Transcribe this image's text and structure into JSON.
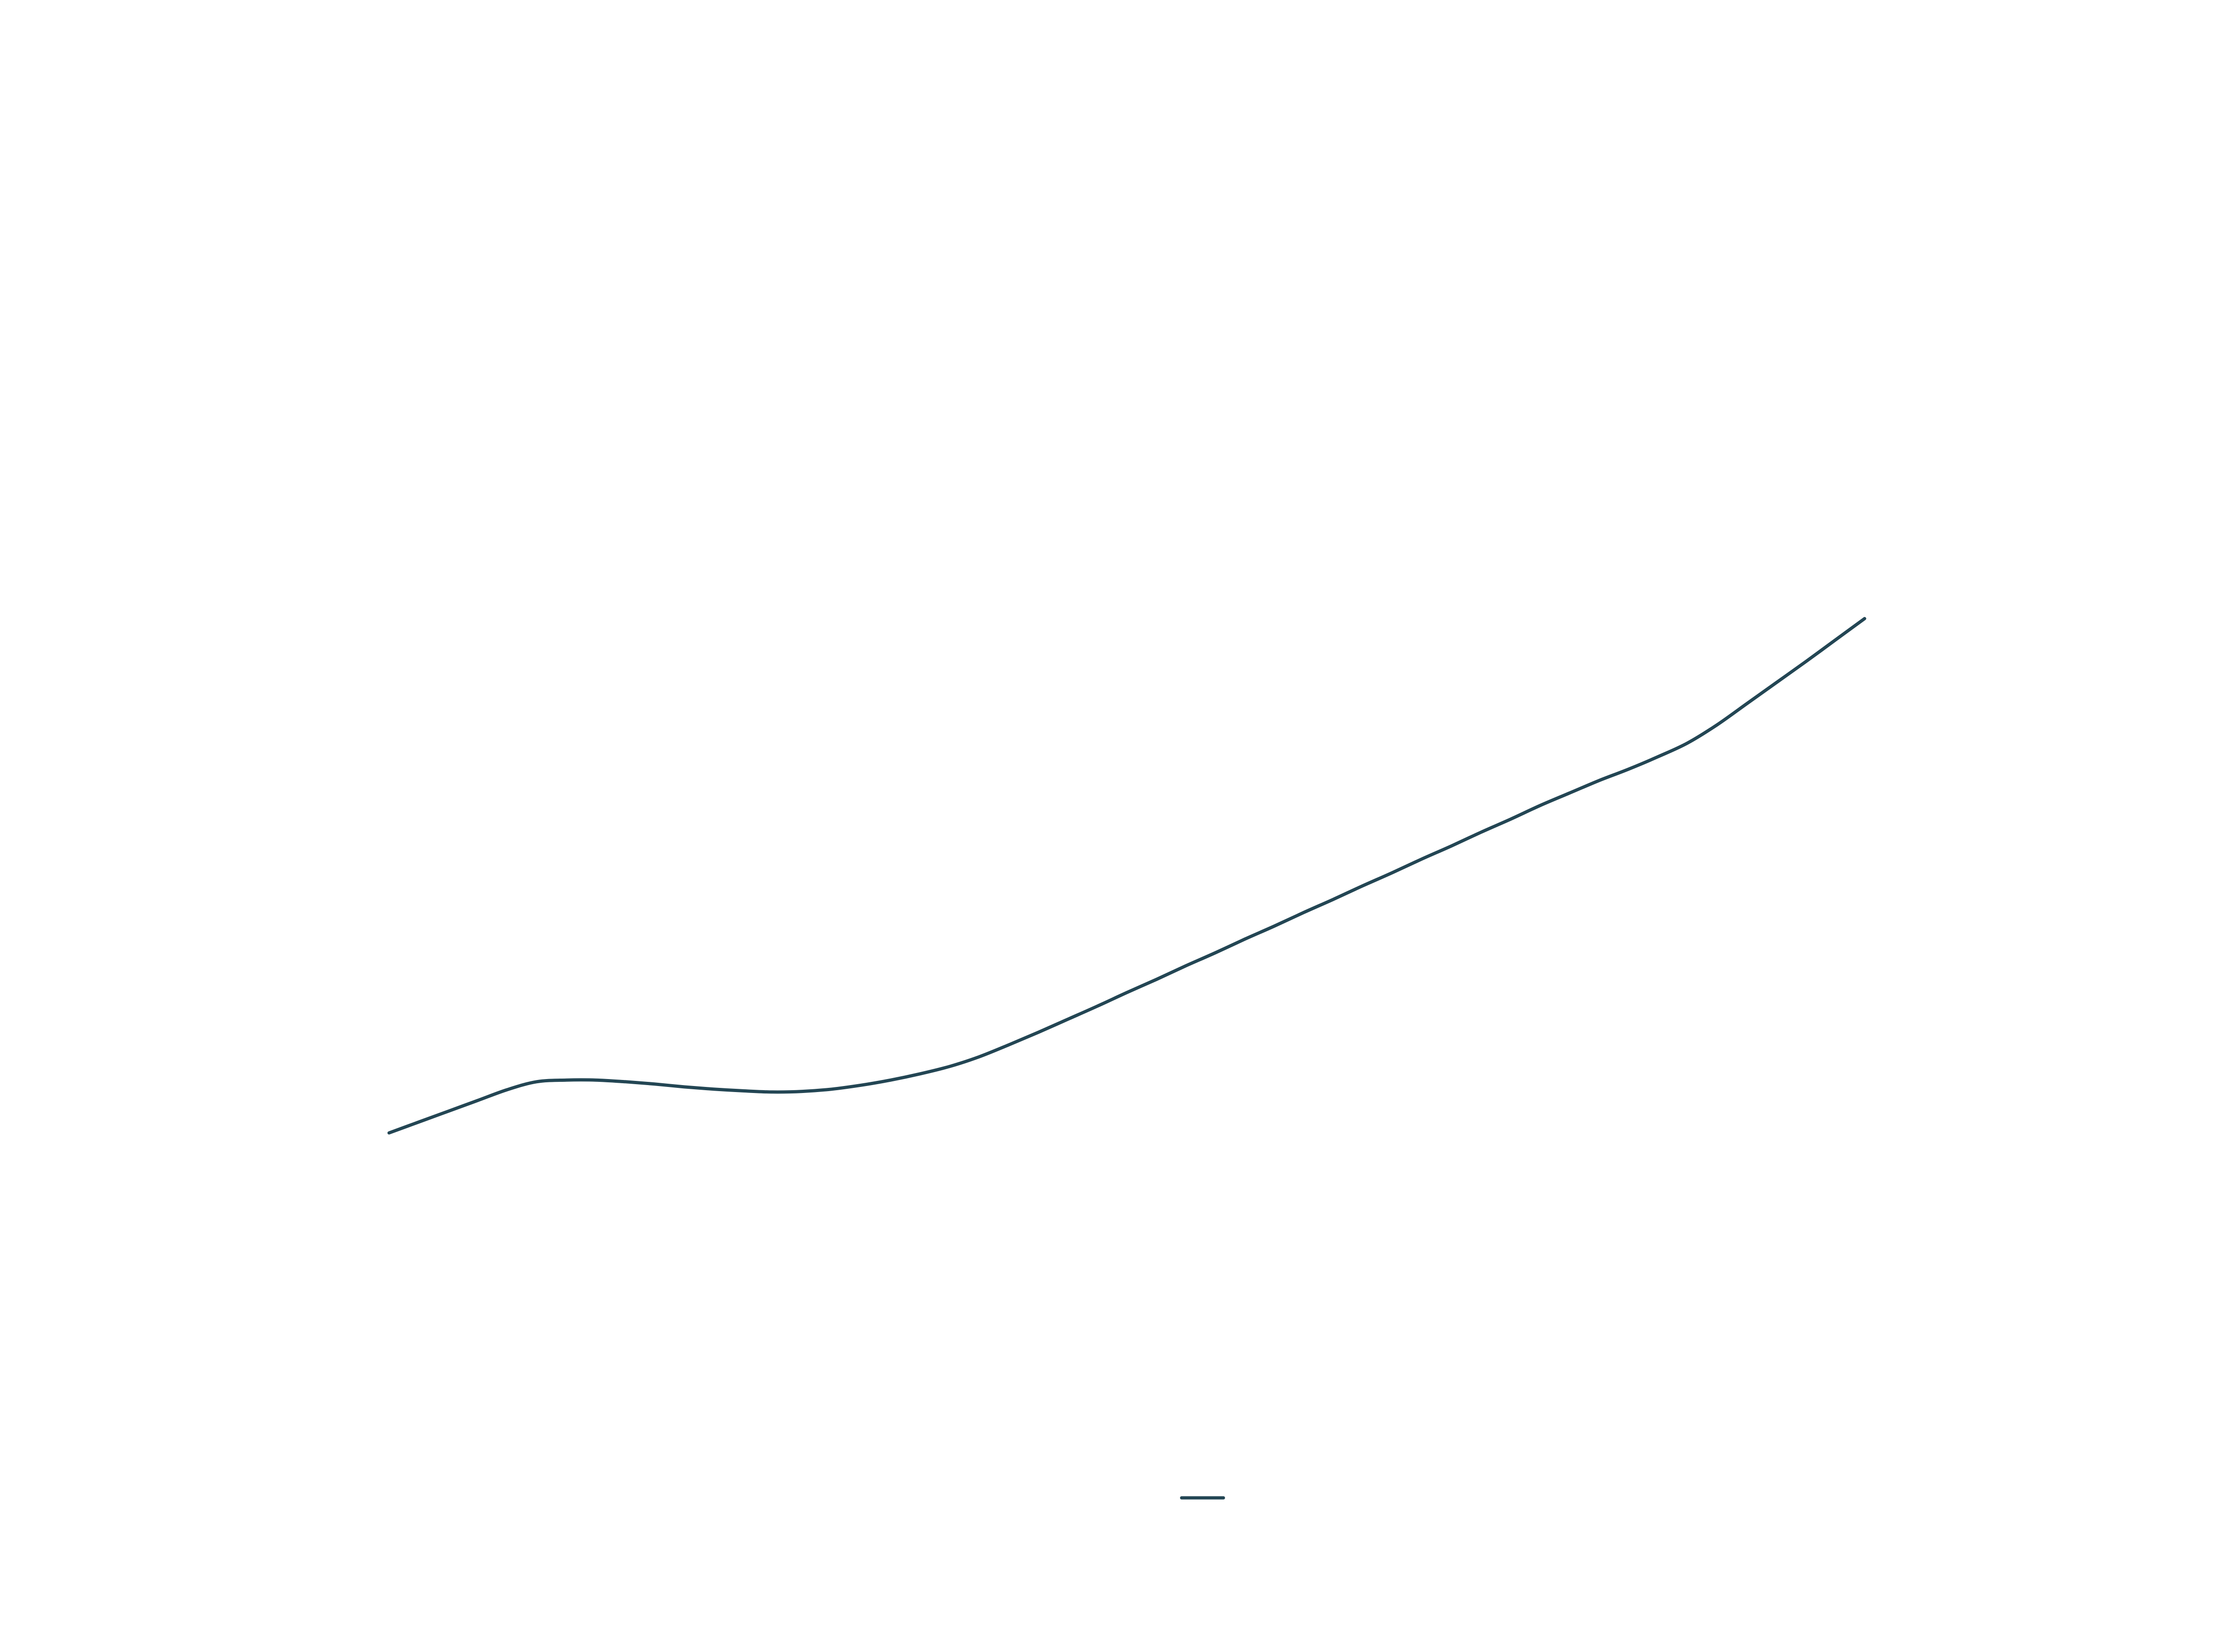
{
  "chart_data": {
    "type": "line",
    "title": "",
    "xlabel": "",
    "ylabel": "",
    "grid": false,
    "axes_visible": false,
    "legend_placement": "bottom-center",
    "xlim": [
      0,
      100
    ],
    "ylim": [
      0,
      100
    ],
    "series": [
      {
        "name": "",
        "color": "#234654",
        "x": [
          0,
          2,
          4,
          6,
          8,
          10,
          12,
          14,
          16,
          18,
          20,
          22,
          24,
          26,
          28,
          30,
          32,
          34,
          36,
          38,
          40,
          42,
          44,
          46,
          48,
          50,
          52,
          54,
          56,
          58,
          60,
          62,
          64,
          66,
          68,
          70,
          72,
          74,
          76,
          78,
          80,
          82,
          84,
          86,
          88,
          90,
          92,
          94,
          96,
          98,
          100
        ],
        "y": [
          0.0,
          1.9,
          3.8,
          5.7,
          7.6,
          9.0,
          9.3,
          9.3,
          9.0,
          8.6,
          8.1,
          7.7,
          7.4,
          7.2,
          7.3,
          7.7,
          8.4,
          9.3,
          10.4,
          11.7,
          13.4,
          15.5,
          17.7,
          20.0,
          22.3,
          24.7,
          27.0,
          29.4,
          31.7,
          34.1,
          36.4,
          38.8,
          41.1,
          43.5,
          45.8,
          48.2,
          50.5,
          52.9,
          55.2,
          57.6,
          59.8,
          62.0,
          64.0,
          66.2,
          68.6,
          71.8,
          75.5,
          79.2,
          82.9,
          86.7,
          90.5
        ]
      }
    ]
  }
}
